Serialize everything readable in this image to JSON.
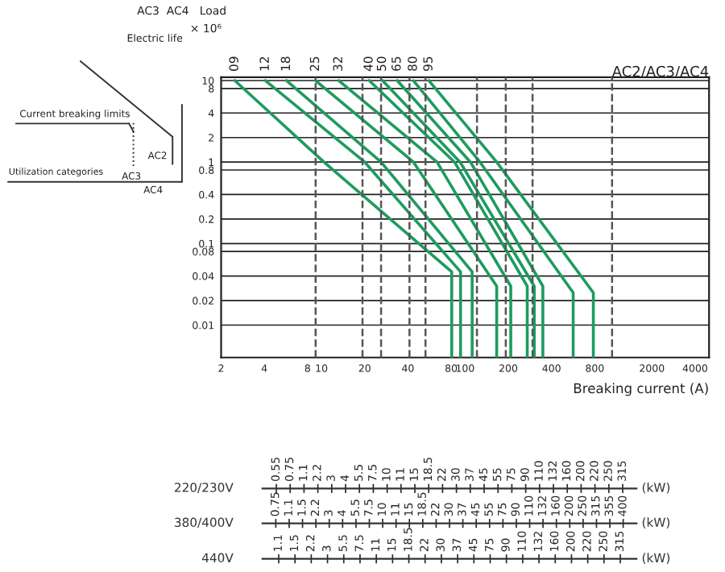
{
  "chart_data": [
    {
      "type": "line",
      "xlabel": "Breaking current (A)",
      "log": "xy",
      "xlim": [
        2,
        5000
      ],
      "ylim": [
        0.004,
        11
      ],
      "xticks": [
        2,
        4,
        8,
        10,
        20,
        40,
        80,
        100,
        200,
        400,
        800,
        2000,
        4000
      ],
      "yticks": [
        10,
        8,
        4,
        2,
        1,
        0.8,
        0.4,
        0.2,
        0.1,
        0.08,
        0.04,
        0.02,
        0.01
      ],
      "grid": "y",
      "annotations": [
        "AC2/AC3/AC4",
        "AC3  AC4   Load",
        "Electric life",
        "× 10⁶",
        "Current breaking limits",
        "Utilization categories",
        "AC2",
        "AC3",
        "AC4"
      ],
      "ref_lines": [
        {
          "axis": "x",
          "value": 9.1,
          "line_style": "dashed",
          "color": "#555555"
        },
        {
          "axis": "x",
          "value": 19.3,
          "line_style": "dashed",
          "color": "#555555"
        },
        {
          "axis": "x",
          "value": 26,
          "line_style": "dashed",
          "color": "#555555"
        },
        {
          "axis": "x",
          "value": 41,
          "line_style": "dashed",
          "color": "#555555"
        },
        {
          "axis": "x",
          "value": 53,
          "line_style": "dashed",
          "color": "#555555"
        },
        {
          "axis": "x",
          "value": 121,
          "line_style": "dashed",
          "color": "#555555"
        },
        {
          "axis": "x",
          "value": 192,
          "line_style": "dashed",
          "color": "#555555"
        },
        {
          "axis": "x",
          "value": 295,
          "line_style": "dashed",
          "color": "#555555"
        },
        {
          "axis": "x",
          "value": 1056,
          "line_style": "dashed",
          "color": "#555555"
        }
      ],
      "series": [
        {
          "name": "09",
          "color": "#1e9b5e",
          "x": [
            2.49,
            10.4,
            80.7,
            80.7
          ],
          "values": [
            10,
            1,
            0.045,
            0.004
          ]
        },
        {
          "name": "12",
          "color": "#1e9b5e",
          "x": [
            4.07,
            20,
            93,
            93
          ],
          "values": [
            10,
            1,
            0.045,
            0.004
          ]
        },
        {
          "name": "18",
          "color": "#1e9b5e",
          "x": [
            5.71,
            26,
            112,
            112
          ],
          "values": [
            10,
            1,
            0.045,
            0.004
          ]
        },
        {
          "name": "25",
          "color": "#1e9b5e",
          "x": [
            9.1,
            43.7,
            166,
            166
          ],
          "values": [
            10,
            1,
            0.03,
            0.004
          ]
        },
        {
          "name": "32",
          "color": "#1e9b5e",
          "x": [
            13.2,
            63.8,
            208,
            208
          ],
          "values": [
            10,
            1,
            0.03,
            0.004
          ]
        },
        {
          "name": "40",
          "color": "#1e9b5e",
          "x": [
            21.5,
            84.4,
            271,
            271
          ],
          "values": [
            10,
            1,
            0.03,
            0.004
          ]
        },
        {
          "name": "50",
          "color": "#1e9b5e",
          "x": [
            26.6,
            92.3,
            303,
            303
          ],
          "values": [
            10,
            1,
            0.03,
            0.004
          ]
        },
        {
          "name": "65",
          "color": "#1e9b5e",
          "x": [
            33.7,
            109,
            348,
            348
          ],
          "values": [
            10,
            1,
            0.03,
            0.004
          ]
        },
        {
          "name": "80",
          "color": "#1e9b5e",
          "x": [
            43.7,
            127,
            566,
            566
          ],
          "values": [
            10,
            1,
            0.025,
            0.004
          ]
        },
        {
          "name": "95",
          "color": "#1e9b5e",
          "x": [
            56,
            166,
            782,
            782
          ],
          "values": [
            10,
            1,
            0.025,
            0.004
          ]
        }
      ]
    },
    {
      "type": "other",
      "title": "220/230V",
      "xlabel": "(kW)",
      "categories": [
        "0.55",
        "0.75",
        "1.1",
        "2.2",
        "3",
        "4",
        "5.5",
        "7.5",
        "10",
        "11",
        "15",
        "18.5",
        "22",
        "30",
        "37",
        "45",
        "55",
        "75",
        "90",
        "110",
        "132",
        "160",
        "200",
        "220",
        "250",
        "315"
      ]
    },
    {
      "type": "other",
      "title": "380/400V",
      "xlabel": "(kW)",
      "categories": [
        "0.75",
        "1.1",
        "1.5",
        "2.2",
        "3",
        "4",
        "5.5",
        "7.5",
        "10",
        "11",
        "15",
        "18.5",
        "22",
        "30",
        "37",
        "45",
        "55",
        "75",
        "90",
        "110",
        "132",
        "160",
        "200",
        "250",
        "315",
        "355",
        "400"
      ]
    },
    {
      "type": "other",
      "title": "440V",
      "xlabel": "(kW)",
      "categories": [
        "1.1",
        "1.5",
        "2.2",
        "3",
        "5.5",
        "7.5",
        "11",
        "15",
        "18.5",
        "22",
        "30",
        "37",
        "45",
        "75",
        "90",
        "110",
        "132",
        "160",
        "200",
        "220",
        "250",
        "315"
      ]
    }
  ]
}
